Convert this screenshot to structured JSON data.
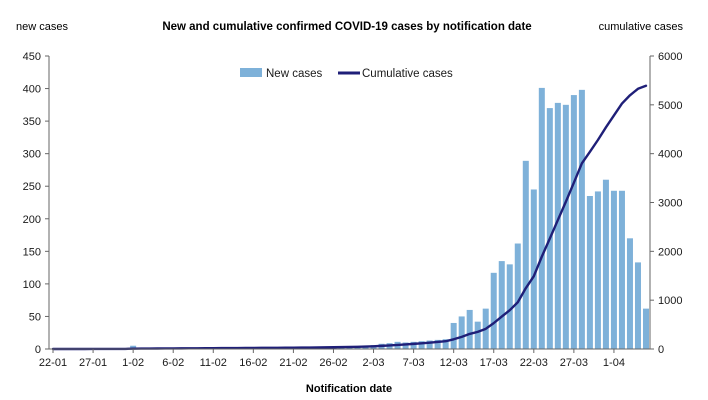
{
  "chart_data": {
    "type": "bar+line",
    "title": "New and cumulative confirmed COVID-19 cases by notification date",
    "xlabel": "Notification date",
    "ylabel_left": "new cases",
    "ylabel_right": "cumulative cases",
    "ylim_left": [
      0,
      450
    ],
    "yticks_left": [
      0,
      50,
      100,
      150,
      200,
      250,
      300,
      350,
      400,
      450
    ],
    "ylim_right": [
      0,
      6000
    ],
    "yticks_right": [
      0,
      1000,
      2000,
      3000,
      4000,
      5000,
      6000
    ],
    "xtick_labels": [
      "22-01",
      "27-01",
      "1-02",
      "6-02",
      "11-02",
      "16-02",
      "21-02",
      "26-02",
      "2-03",
      "7-03",
      "12-03",
      "17-03",
      "22-03",
      "27-03",
      "1-04"
    ],
    "grid": false,
    "legend_position": "top-center",
    "legend": [
      {
        "label": "New cases",
        "kind": "bar",
        "color": "#7eb1d9"
      },
      {
        "label": "Cumulative cases",
        "kind": "line",
        "color": "#1f1f78"
      }
    ],
    "x": [
      "22-01",
      "23-01",
      "24-01",
      "25-01",
      "26-01",
      "27-01",
      "28-01",
      "29-01",
      "30-01",
      "31-01",
      "1-02",
      "2-02",
      "3-02",
      "4-02",
      "5-02",
      "6-02",
      "7-02",
      "8-02",
      "9-02",
      "10-02",
      "11-02",
      "12-02",
      "13-02",
      "14-02",
      "15-02",
      "16-02",
      "17-02",
      "18-02",
      "19-02",
      "20-02",
      "21-02",
      "22-02",
      "23-02",
      "24-02",
      "25-02",
      "26-02",
      "27-02",
      "28-02",
      "29-02",
      "1-03",
      "2-03",
      "3-03",
      "4-03",
      "5-03",
      "6-03",
      "7-03",
      "8-03",
      "9-03",
      "10-03",
      "11-03",
      "12-03",
      "13-03",
      "14-03",
      "15-03",
      "16-03",
      "17-03",
      "18-03",
      "19-03",
      "20-03",
      "21-03",
      "22-03",
      "23-03",
      "24-03",
      "25-03",
      "26-03",
      "27-03",
      "28-03",
      "29-03",
      "30-03",
      "31-03",
      "1-04",
      "2-04",
      "3-04",
      "4-04",
      "5-04"
    ],
    "series": [
      {
        "name": "New cases",
        "type": "bar",
        "values": [
          0,
          0,
          0,
          0,
          0,
          1,
          0,
          0,
          0,
          1,
          5,
          1,
          1,
          1,
          1,
          1,
          1,
          1,
          1,
          1,
          1,
          1,
          1,
          1,
          1,
          1,
          1,
          1,
          1,
          1,
          1,
          1,
          2,
          2,
          2,
          2,
          3,
          3,
          3,
          5,
          6,
          8,
          9,
          11,
          10,
          11,
          12,
          13,
          14,
          15,
          40,
          50,
          60,
          42,
          62,
          117,
          135,
          130,
          162,
          289,
          245,
          401,
          370,
          378,
          375,
          390,
          398,
          235,
          242,
          260,
          243,
          243,
          170,
          133,
          62
        ]
      },
      {
        "name": "Cumulative cases",
        "type": "line",
        "values": [
          0,
          0,
          0,
          0,
          0,
          1,
          1,
          1,
          1,
          2,
          7,
          8,
          9,
          10,
          11,
          12,
          13,
          14,
          15,
          16,
          17,
          18,
          19,
          20,
          21,
          22,
          23,
          24,
          25,
          26,
          27,
          28,
          30,
          32,
          34,
          36,
          39,
          42,
          45,
          50,
          56,
          64,
          73,
          84,
          94,
          105,
          117,
          130,
          144,
          159,
          199,
          249,
          309,
          351,
          413,
          530,
          665,
          795,
          957,
          1246,
          1491,
          1892,
          2262,
          2640,
          3015,
          3405,
          3803,
          4038,
          4280,
          4540,
          4783,
          5026,
          5196,
          5329,
          5391
        ]
      }
    ]
  }
}
